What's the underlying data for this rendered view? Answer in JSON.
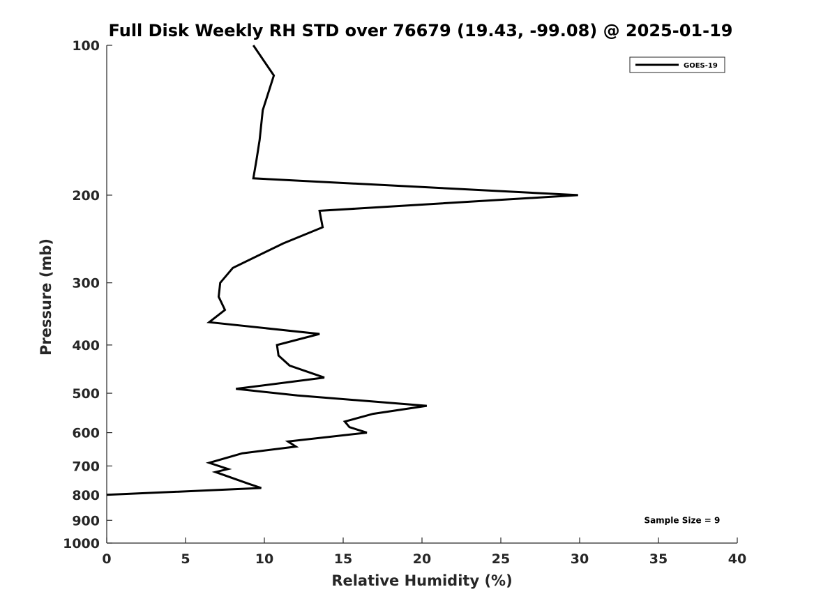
{
  "chart_data": {
    "type": "line",
    "title": "Full Disk Weekly RH STD over 76679 (19.43, -99.08) @ 2025-01-19",
    "xlabel": "Relative Humidity (%)",
    "ylabel": "Pressure (mb)",
    "xlim": [
      0,
      40
    ],
    "ylim": [
      100,
      1000
    ],
    "yscale": "log",
    "yreversed": true,
    "xticks": [
      0,
      5,
      10,
      15,
      20,
      25,
      30,
      35,
      40
    ],
    "xtick_labels": [
      "0",
      "5",
      "10",
      "15",
      "20",
      "25",
      "30",
      "35",
      "40"
    ],
    "yticks": [
      100,
      200,
      300,
      400,
      500,
      600,
      700,
      800,
      900,
      1000
    ],
    "ytick_labels": [
      "100",
      "200",
      "300",
      "400",
      "500",
      "600",
      "700",
      "800",
      "900",
      "1000"
    ],
    "grid": false,
    "legend_position": "top-right",
    "series": [
      {
        "name": "GOES-19",
        "color": "#000000",
        "x": [
          9.3,
          10.6,
          9.9,
          9.7,
          9.5,
          9.3,
          29.9,
          13.5,
          13.7,
          11.2,
          8.0,
          7.2,
          7.1,
          7.5,
          6.5,
          13.5,
          10.8,
          10.9,
          11.6,
          13.8,
          8.2,
          12.1,
          20.3,
          16.9,
          15.1,
          15.4,
          16.5,
          11.5,
          12.0,
          8.6,
          6.5,
          7.7,
          6.9,
          9.0,
          9.8,
          0.0
        ],
        "y": [
          100,
          115,
          135,
          155,
          170,
          185,
          200,
          215,
          232,
          250,
          280,
          300,
          320,
          340,
          360,
          380,
          400,
          420,
          440,
          465,
          490,
          505,
          530,
          550,
          570,
          585,
          600,
          625,
          640,
          660,
          690,
          710,
          720,
          760,
          775,
          800
        ]
      }
    ],
    "annotations": [
      {
        "text": "Sample Size = 9",
        "x": 36.5,
        "y": 900
      }
    ]
  }
}
